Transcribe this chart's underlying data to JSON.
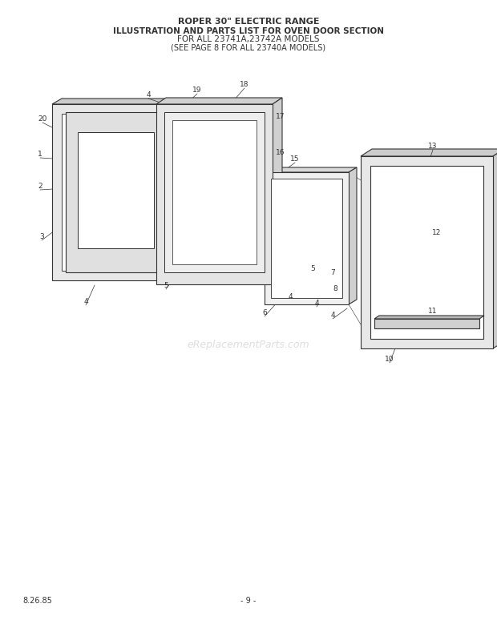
{
  "title_lines": [
    "ROPER 30\" ELECTRIC RANGE",
    "ILLUSTRATION AND PARTS LIST FOR OVEN DOOR SECTION",
    "FOR ALL 23741A,23742A MODELS",
    "(SEE PAGE 8 FOR ALL 23740A MODELS)"
  ],
  "footer_left": "8.26.85",
  "footer_center": "- 9 -",
  "watermark": "eReplacementParts.com",
  "bg_color": "#ffffff",
  "diagram_color": "#333333",
  "lc": "#333333"
}
